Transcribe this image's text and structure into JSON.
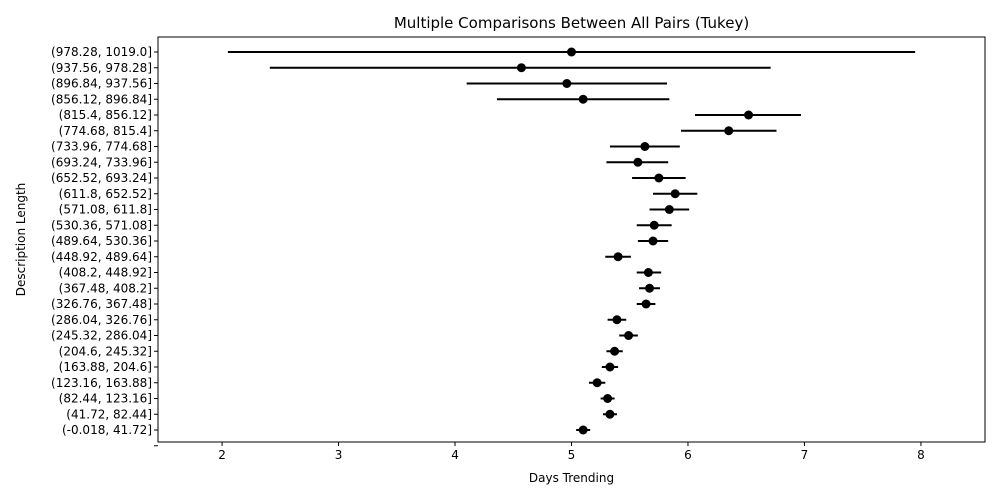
{
  "chart_data": {
    "type": "scatter",
    "title": "Multiple Comparisons Between All Pairs (Tukey)",
    "xlabel": "Days Trending",
    "ylabel": "Description Length",
    "xlim": [
      1.45,
      8.55
    ],
    "xticks": [
      2,
      3,
      4,
      5,
      6,
      7,
      8
    ],
    "grid": false,
    "error_bars": "confidence interval (horizontal)",
    "categories": [
      "(978.28, 1019.0]",
      "(937.56, 978.28]",
      "(896.84, 937.56]",
      "(856.12, 896.84]",
      "(815.4, 856.12]",
      "(774.68, 815.4]",
      "(733.96, 774.68]",
      "(693.24, 733.96]",
      "(652.52, 693.24]",
      "(611.8, 652.52]",
      "(571.08, 611.8]",
      "(530.36, 571.08]",
      "(489.64, 530.36]",
      "(448.92, 489.64]",
      "(408.2, 448.92]",
      "(367.48, 408.2]",
      "(326.76, 367.48]",
      "(286.04, 326.76]",
      "(245.32, 286.04]",
      "(204.6, 245.32]",
      "(163.88, 204.6]",
      "(123.16, 163.88]",
      "(82.44, 123.16]",
      "(41.72, 82.44]",
      "(-0.018, 41.72]"
    ],
    "means": [
      5.0,
      4.57,
      4.96,
      5.1,
      6.52,
      6.35,
      5.63,
      5.57,
      5.75,
      5.89,
      5.84,
      5.71,
      5.7,
      5.4,
      5.66,
      5.67,
      5.64,
      5.39,
      5.49,
      5.37,
      5.33,
      5.22,
      5.31,
      5.33,
      5.1
    ],
    "lower": [
      2.05,
      2.41,
      4.1,
      4.36,
      6.06,
      5.94,
      5.33,
      5.3,
      5.52,
      5.7,
      5.67,
      5.56,
      5.57,
      5.29,
      5.56,
      5.58,
      5.56,
      5.31,
      5.41,
      5.3,
      5.26,
      5.15,
      5.25,
      5.27,
      5.04
    ],
    "upper": [
      7.95,
      6.71,
      5.82,
      5.84,
      6.97,
      6.76,
      5.93,
      5.83,
      5.98,
      6.08,
      6.01,
      5.86,
      5.83,
      5.51,
      5.77,
      5.76,
      5.72,
      5.47,
      5.57,
      5.44,
      5.4,
      5.29,
      5.37,
      5.39,
      5.16
    ]
  }
}
